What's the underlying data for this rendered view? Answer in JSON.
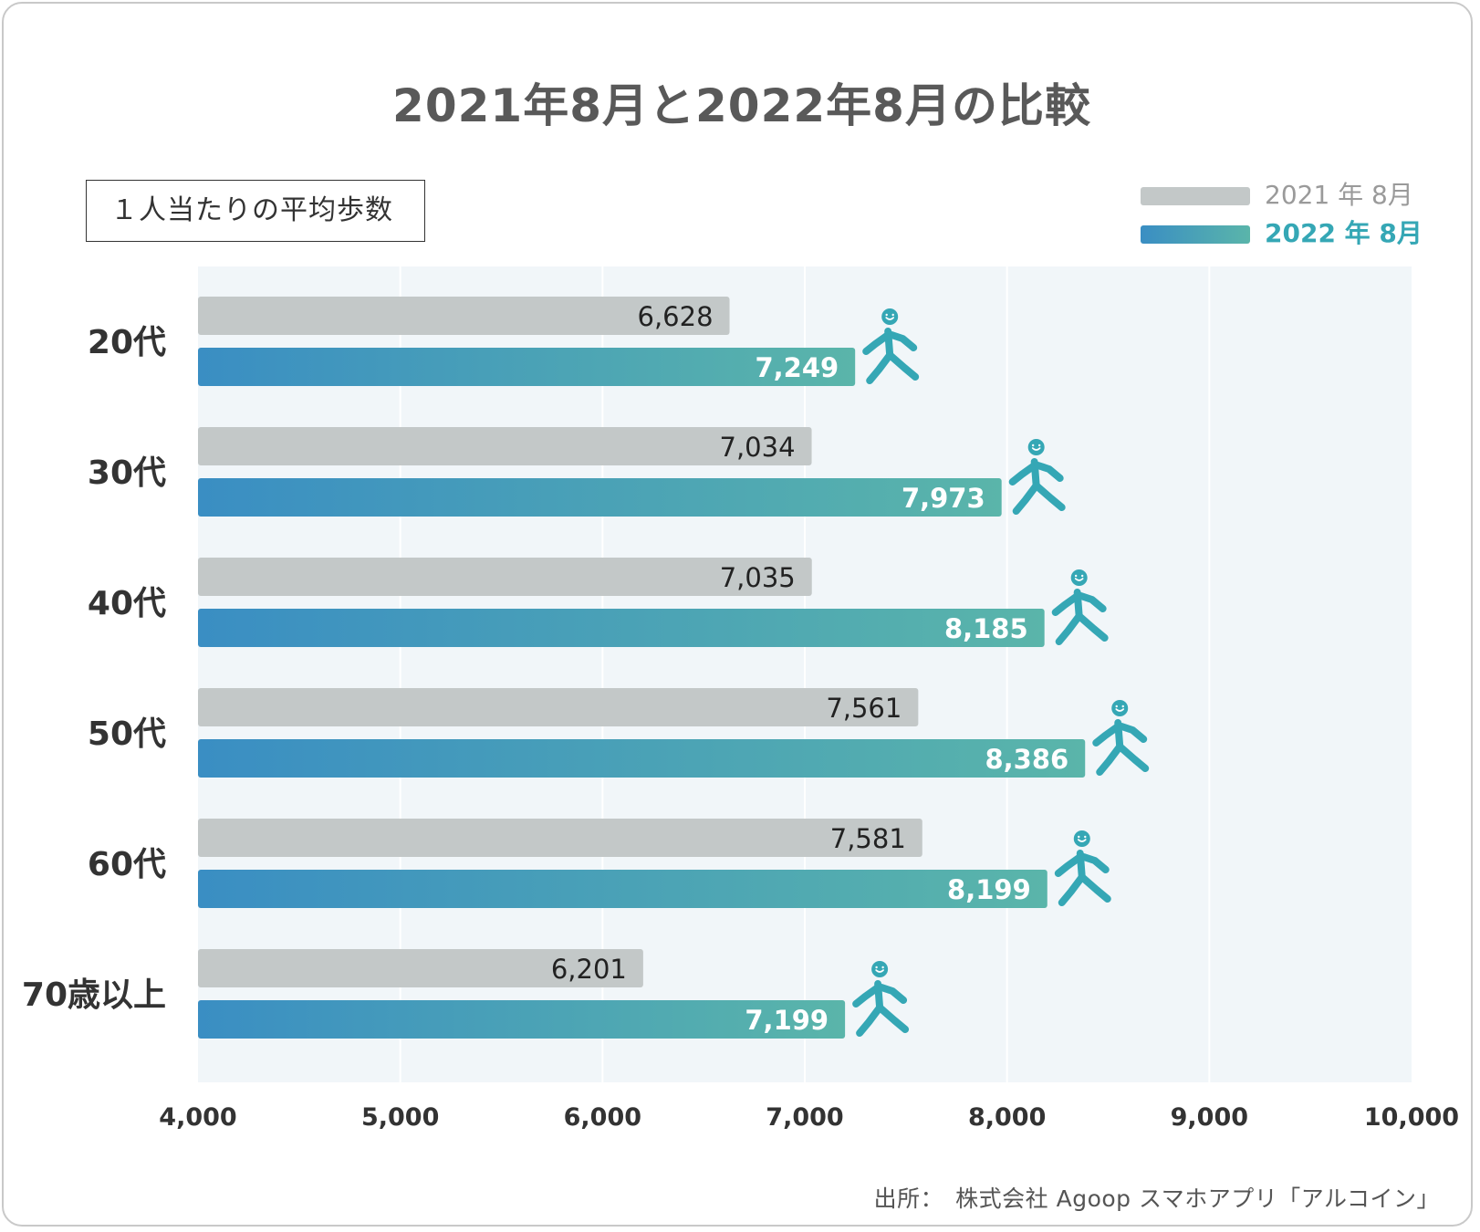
{
  "title": "2021年8月と2022年8月の比較",
  "metric_label": "１人当たりの平均歩数",
  "legend": [
    {
      "label": "2021 年 8月",
      "color": "#c3c8c8"
    },
    {
      "label": "2022 年 8月",
      "color": "#35a7b5"
    }
  ],
  "source": "出所：　株式会社 Agoop スマホアプリ「アルコイン」",
  "chart_data": {
    "type": "bar",
    "orientation": "horizontal",
    "title": "2021年8月と2022年8月の比較",
    "xlabel": "",
    "ylabel": "１人当たりの平均歩数",
    "xlim": [
      4000,
      10000
    ],
    "xticks": [
      4000,
      5000,
      6000,
      7000,
      8000,
      9000,
      10000
    ],
    "xtick_labels": [
      "4,000",
      "5,000",
      "6,000",
      "7,000",
      "8,000",
      "9,000",
      "10,000"
    ],
    "categories": [
      "20代",
      "30代",
      "40代",
      "50代",
      "60代",
      "70歳以上"
    ],
    "series": [
      {
        "name": "2021 年 8月",
        "color": "#c3c8c8",
        "values": [
          6628,
          7034,
          7035,
          7561,
          7581,
          6201
        ],
        "labels": [
          "6,628",
          "7,034",
          "7,035",
          "7,561",
          "7,581",
          "6,201"
        ]
      },
      {
        "name": "2022 年 8月",
        "color": "#35a7b5",
        "values": [
          7249,
          7973,
          8185,
          8386,
          8199,
          7199
        ],
        "labels": [
          "7,249",
          "7,973",
          "8,185",
          "8,386",
          "8,199",
          "7,199"
        ]
      }
    ],
    "grid": true,
    "legend_position": "top-right",
    "icon": "walking-person-icon",
    "icon_color": "#35a7b5"
  }
}
